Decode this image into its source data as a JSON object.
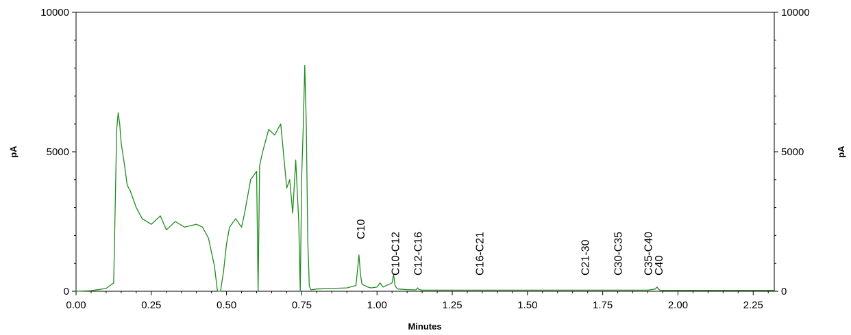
{
  "chart_data": {
    "type": "line",
    "title": "",
    "xlabel": "Minutes",
    "ylabel_left": "pA",
    "ylabel_right": "pA",
    "xlim": [
      0.0,
      2.32
    ],
    "ylim": [
      0,
      10000
    ],
    "x_ticks": [
      "0.00",
      "0.25",
      "0.50",
      "0.75",
      "1.00",
      "1.25",
      "1.50",
      "1.75",
      "2.00",
      "2.25"
    ],
    "y_ticks": [
      "0",
      "5000",
      "10000"
    ],
    "grid": false,
    "line_color": "#1e8a1e",
    "series": [
      {
        "x": [
          0.0,
          0.05,
          0.1,
          0.125,
          0.13,
          0.135,
          0.14,
          0.145,
          0.15,
          0.16,
          0.17,
          0.18,
          0.2,
          0.22,
          0.25,
          0.28,
          0.3,
          0.33,
          0.36,
          0.4,
          0.42,
          0.44,
          0.46,
          0.47,
          0.475,
          0.48,
          0.49,
          0.5,
          0.51,
          0.53,
          0.55,
          0.56,
          0.58,
          0.6,
          0.605,
          0.61,
          0.62,
          0.64,
          0.66,
          0.68,
          0.7,
          0.71,
          0.72,
          0.73,
          0.74,
          0.745,
          0.75,
          0.755,
          0.76,
          0.765,
          0.77,
          0.775,
          0.78,
          0.8,
          0.85,
          0.9,
          0.92,
          0.93,
          0.94,
          0.945,
          0.95,
          0.96,
          0.97,
          0.98,
          1.0,
          1.01,
          1.02,
          1.03,
          1.04,
          1.05,
          1.055,
          1.06,
          1.065,
          1.07,
          1.1,
          1.13,
          1.135,
          1.14,
          1.15,
          1.2,
          1.3,
          1.5,
          1.7,
          1.9,
          1.925,
          1.93,
          1.935,
          1.94,
          1.95,
          2.0,
          2.1,
          2.2,
          2.32
        ],
        "y": [
          0,
          20,
          100,
          300,
          3000,
          5800,
          6400,
          6000,
          5300,
          4600,
          3800,
          3600,
          3000,
          2600,
          2400,
          2700,
          2200,
          2500,
          2300,
          2400,
          2300,
          1900,
          900,
          0,
          0,
          0,
          700,
          1700,
          2300,
          2600,
          2300,
          2800,
          4000,
          4300,
          0,
          4500,
          5000,
          5800,
          5600,
          6000,
          3700,
          4000,
          2800,
          4700,
          2500,
          0,
          4200,
          5900,
          8100,
          6000,
          1800,
          200,
          50,
          80,
          100,
          120,
          180,
          200,
          1300,
          600,
          250,
          200,
          150,
          120,
          150,
          300,
          150,
          200,
          250,
          300,
          600,
          200,
          120,
          80,
          60,
          50,
          120,
          60,
          40,
          40,
          40,
          40,
          40,
          40,
          80,
          150,
          80,
          40,
          30,
          30,
          30,
          30,
          30
        ]
      }
    ],
    "annotations": [
      {
        "text": "C10",
        "x": 0.945
      },
      {
        "text": "C10-C12",
        "x": 1.06
      },
      {
        "text": "C12-C16",
        "x": 1.135
      },
      {
        "text": "C16-C21",
        "x": 1.34
      },
      {
        "text": "C21-30",
        "x": 1.69
      },
      {
        "text": "C30-C35",
        "x": 1.8
      },
      {
        "text": "C35-C40",
        "x": 1.9
      },
      {
        "text": "C40",
        "x": 1.935
      }
    ]
  }
}
